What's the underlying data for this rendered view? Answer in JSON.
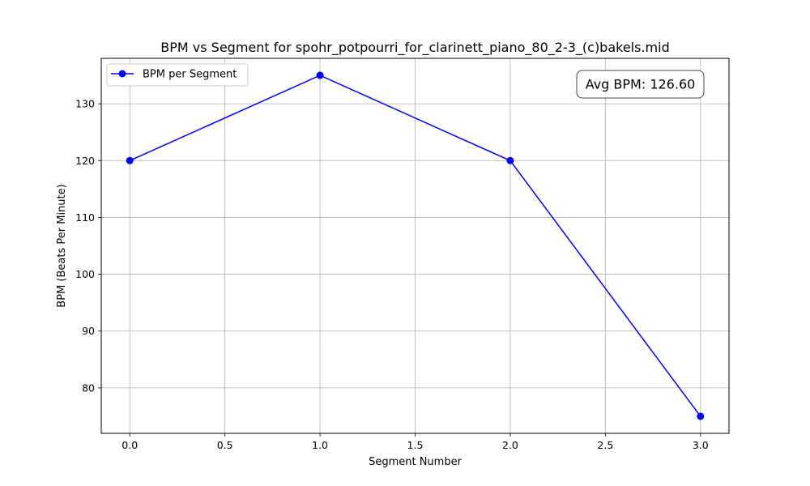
{
  "chart_data": {
    "type": "line",
    "title": "BPM vs Segment for spohr_potpourri_for_clarinett_piano_80_2-3_(c)bakels.mid",
    "xlabel": "Segment Number",
    "ylabel": "BPM (Beats Per Minute)",
    "x": [
      0,
      1,
      2,
      3
    ],
    "series": [
      {
        "name": "BPM per Segment",
        "values": [
          120,
          135,
          120,
          75
        ],
        "color": "#0000ff",
        "marker": "circle"
      }
    ],
    "xlim": [
      -0.15,
      3.15
    ],
    "ylim": [
      72,
      138
    ],
    "xticks": [
      0.0,
      0.5,
      1.0,
      1.5,
      2.0,
      2.5,
      3.0
    ],
    "xtick_labels": [
      "0.0",
      "0.5",
      "1.0",
      "1.5",
      "2.0",
      "2.5",
      "3.0"
    ],
    "yticks": [
      80,
      90,
      100,
      110,
      120,
      130
    ],
    "ytick_labels": [
      "80",
      "90",
      "100",
      "110",
      "120",
      "130"
    ],
    "grid": true,
    "legend_position": "top-left",
    "annotation": {
      "text": "Avg BPM: 126.60",
      "position": "top-right"
    }
  }
}
